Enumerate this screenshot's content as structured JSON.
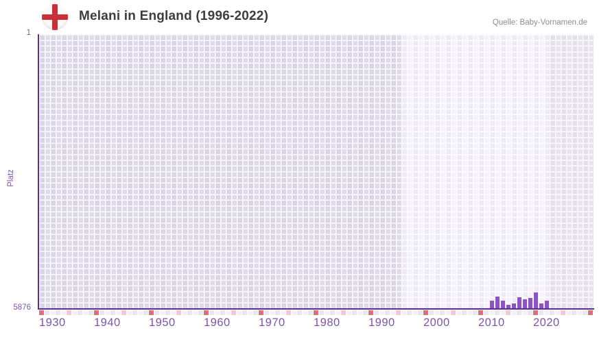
{
  "header": {
    "flag_icon": "england-flag-icon",
    "title": "Melani in England (1996-2022)",
    "source": "Quelle: Baby-Vornamen.de"
  },
  "chart_data": {
    "type": "bar",
    "title": "Melani in England (1996-2022)",
    "ylabel": "Platz",
    "xlabel": "",
    "grid": true,
    "legend_position": "none",
    "y_axis": {
      "top_tick_label": "1",
      "bottom_tick_label": "5876",
      "best_rank": 1,
      "worst_rank": 5876,
      "inverted": true
    },
    "x_axis": {
      "first_year": 1930,
      "last_year": 2030,
      "decade_tick_interval": 10,
      "half_decade_tick_interval": 5,
      "labeled_decades": [
        1930,
        1940,
        1950,
        1960,
        1970,
        1980,
        1990,
        2000,
        2010,
        2020
      ]
    },
    "data_window": {
      "start_year": 1996,
      "end_year": 2022
    },
    "series": [
      {
        "name": "Platz",
        "x": [
          2012,
          2013,
          2014,
          2015,
          2016,
          2017,
          2018,
          2019,
          2020,
          2021,
          2022
        ],
        "values": [
          5710,
          5622,
          5710,
          5798,
          5778,
          5641,
          5689,
          5651,
          5543,
          5778,
          5710
        ]
      }
    ],
    "colors": {
      "bar": "#8c53c4",
      "axis": "#5b2f92",
      "axis_label": "#7e55ab",
      "decade_tick": "#e06e7c",
      "half_decade_tick": "#f4c8d4",
      "tick_cell_a": "#f3f0f9",
      "tick_cell_b": "#ebe7f2",
      "zone_outside_a": "#dad5e6",
      "zone_outside_b": "#e1dcec",
      "zone_data_a": "#edeaf6",
      "zone_data_b": "#f4f1fb",
      "zone_after_a": "#e3e0ec",
      "zone_after_b": "#e8e5f0",
      "flag_cross": "#cb2d39",
      "title_text": "#3d3d3d",
      "source_text": "#8d8d8d"
    }
  }
}
